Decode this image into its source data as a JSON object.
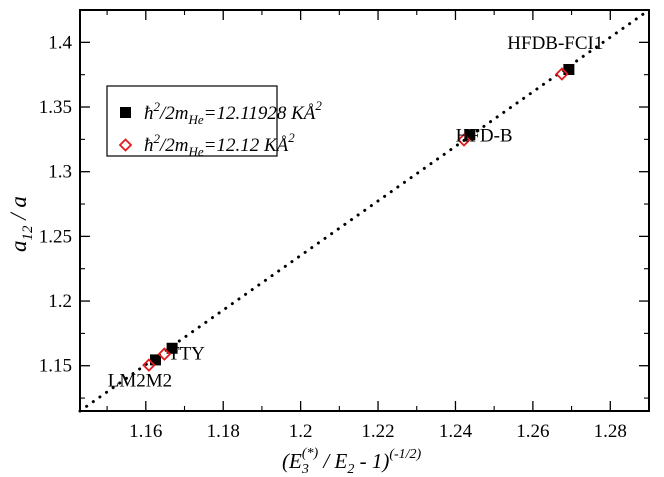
{
  "chart_data": {
    "type": "scatter",
    "xlim": [
      1.143,
      1.29
    ],
    "ylim": [
      1.115,
      1.425
    ],
    "x_ticks": [
      "1.16",
      "1.18",
      "1.2",
      "1.22",
      "1.24",
      "1.26",
      "1.28"
    ],
    "y_ticks": [
      "1.15",
      "1.2",
      "1.25",
      "1.3",
      "1.35",
      "1.4"
    ],
    "xlabel": {
      "base": "(E",
      "sub3": "3",
      "sup": "(*)",
      "mid": " / E",
      "sub2": "2",
      "tail": " - 1)",
      "exp": "(-1/2)"
    },
    "ylabel": {
      "base": "a",
      "sub": "12",
      "tail": " / a"
    },
    "grid": false,
    "legend_position": "upper-left",
    "series": [
      {
        "marker": "filled-square",
        "color": "#000000",
        "legend": {
          "hbar": "ħ",
          "sup2": "2",
          "mid": "/2m",
          "sub": "He",
          "value": "=12.11928 K",
          "unit": "Å",
          "unit_sup": "2"
        },
        "points": [
          {
            "x": 1.1625,
            "y": 1.1545
          },
          {
            "x": 1.1668,
            "y": 1.1635
          },
          {
            "x": 1.2437,
            "y": 1.3285
          },
          {
            "x": 1.2693,
            "y": 1.379
          }
        ]
      },
      {
        "marker": "open-diamond",
        "color": "#e41a1c",
        "legend": {
          "hbar": "ħ",
          "sup2": "2",
          "mid": "/2m",
          "sub": "He",
          "value": "=12.12 K",
          "unit": "Å",
          "unit_sup": "2"
        },
        "points": [
          {
            "x": 1.1608,
            "y": 1.1505
          },
          {
            "x": 1.1648,
            "y": 1.159
          },
          {
            "x": 1.2422,
            "y": 1.3245
          },
          {
            "x": 1.2675,
            "y": 1.3755
          }
        ]
      }
    ],
    "fit_line": {
      "style": "dotted",
      "from": [
        1.143,
        1.115
      ],
      "to": [
        1.29,
        1.425
      ]
    },
    "annotations": [
      {
        "text": "HFDB-FCI1",
        "x": 1.2658,
        "y": 1.395
      },
      {
        "text": "HFD-B",
        "x": 1.2474,
        "y": 1.3232
      },
      {
        "text": "TTY",
        "x": 1.1705,
        "y": 1.155
      },
      {
        "text": "LM2M2",
        "x": 1.1585,
        "y": 1.134
      }
    ]
  }
}
